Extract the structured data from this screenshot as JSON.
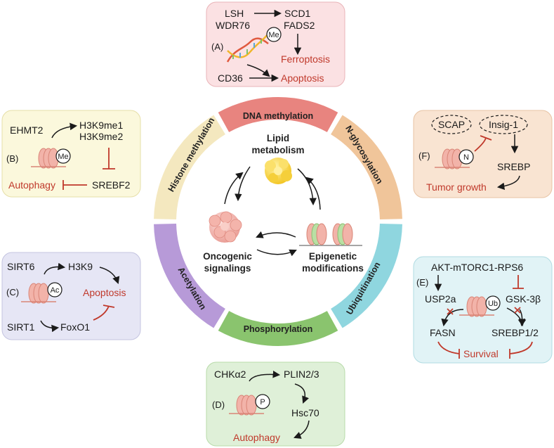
{
  "colors": {
    "dna_methylation": "#e8847f",
    "n_glycosylation": "#f0c59a",
    "ubiquitination": "#8fd6df",
    "phosphorylation": "#8ac46e",
    "acetylation": "#b79ad8",
    "histone_methylation": "#f4e8bf",
    "red_text": "#c0392b",
    "panel_A": "#fbe1e3",
    "panel_B": "#fbf8dc",
    "panel_C": "#e6e6f5",
    "panel_D": "#dff0d8",
    "panel_E": "#e1f3f6",
    "panel_F": "#f9e4d2"
  },
  "ring": {
    "dna_methylation": "DNA methylation",
    "n_glycosylation": "N-glycosylation",
    "ubiquitination": "Ubiquitination",
    "phosphorylation": "Phosphorylation",
    "acetylation": "Acetylation",
    "histone_methylation": "Histone methylation"
  },
  "center": {
    "lipid_1": "Lipid",
    "lipid_2": "metabolism",
    "onco_1": "Oncogenic",
    "onco_2": "signalings",
    "epi_1": "Epigenetic",
    "epi_2": "modifications"
  },
  "panel_A": {
    "label": "(A)",
    "lsh": "LSH",
    "wdr76": "WDR76",
    "scd1": "SCD1",
    "fads2": "FADS2",
    "me": "Me",
    "ferroptosis": "Ferroptosis",
    "cd36": "CD36",
    "apoptosis": "Apoptosis"
  },
  "panel_B": {
    "label": "(B)",
    "ehmt2": "EHMT2",
    "h3k9me1": "H3K9me1",
    "h3k9me2": "H3K9me2",
    "me": "Me",
    "autophagy": "Autophagy",
    "srebf2": "SREBF2"
  },
  "panel_C": {
    "label": "(C)",
    "sirt6": "SIRT6",
    "h3k9": "H3K9",
    "ac": "Ac",
    "apoptosis": "Apoptosis",
    "sirt1": "SIRT1",
    "foxo1": "FoxO1"
  },
  "panel_D": {
    "label": "(D)",
    "chka2": "CHKα2",
    "plin": "PLIN2/3",
    "p": "P",
    "hsc70": "Hsc70",
    "autophagy": "Autophagy"
  },
  "panel_E": {
    "label": "(E)",
    "akt": "AKT-mTORC1-RPS6",
    "usp2a": "USP2a",
    "ub": "Ub",
    "gsk": "GSK-3β",
    "fasn": "FASN",
    "srebp12": "SREBP1/2",
    "survival": "Survival"
  },
  "panel_F": {
    "label": "(F)",
    "scap": "SCAP",
    "insig": "Insig-1",
    "n": "N",
    "srebp": "SREBP",
    "tumor": "Tumor growth"
  }
}
